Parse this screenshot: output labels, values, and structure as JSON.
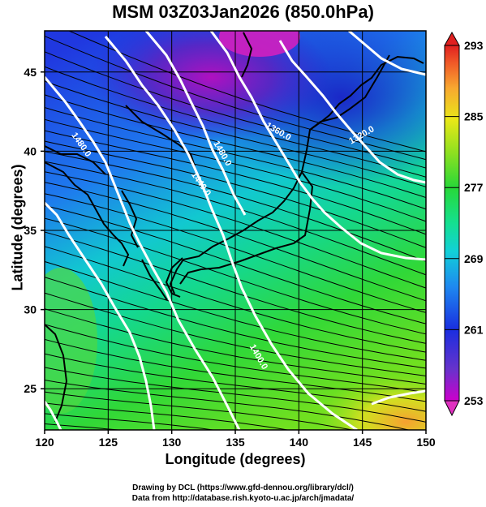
{
  "title": "MSM 03Z03Jan2026 (850.0hPa)",
  "x_axis": {
    "label": "Longitude (degrees)",
    "ticks": [
      120,
      125,
      130,
      135,
      140,
      145,
      150
    ],
    "range": [
      120,
      150
    ]
  },
  "y_axis": {
    "label": "Latitude  (degrees)",
    "ticks": [
      25,
      30,
      35,
      40,
      45
    ],
    "range": [
      22.4,
      47.6
    ]
  },
  "colorbar": {
    "ticks": [
      293,
      285,
      277,
      269,
      261,
      253
    ],
    "range": [
      253,
      293
    ],
    "colors": [
      "#cc00cc",
      "#6633cc",
      "#1a2ee0",
      "#1e88f0",
      "#12d0d8",
      "#14e090",
      "#28d838",
      "#90e020",
      "#e8e818",
      "#f8a830",
      "#f05a28",
      "#e02020"
    ]
  },
  "contours": {
    "units": "m",
    "labels": [
      "1480.0",
      "1480.0",
      "1440.0",
      "1400.0",
      "1360.0",
      "1320.0"
    ]
  },
  "credits": {
    "line1": "Drawing by DCL (https://www.gfd-dennou.org/library/dcl/)",
    "line2": "Data from http://database.rish.kyoto-u.ac.jp/arch/jmadata/"
  }
}
